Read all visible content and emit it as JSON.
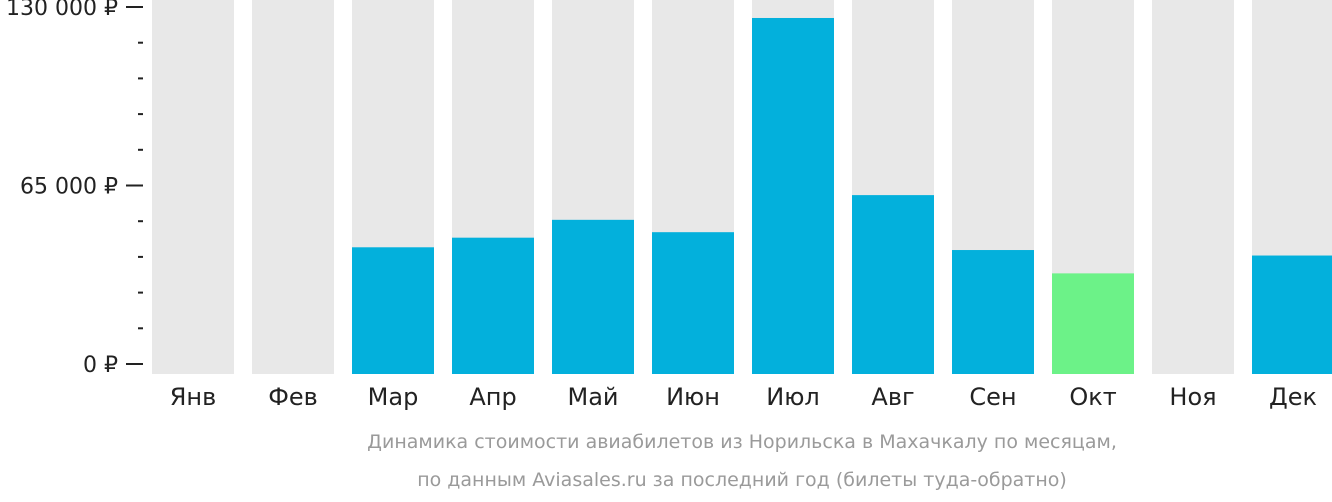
{
  "chart_data": {
    "type": "bar",
    "categories": [
      "Янв",
      "Фев",
      "Мар",
      "Апр",
      "Май",
      "Июн",
      "Июл",
      "Авг",
      "Сен",
      "Окт",
      "Ноя",
      "Дек"
    ],
    "values": [
      null,
      null,
      42500,
      46000,
      52500,
      48000,
      126000,
      61500,
      41500,
      33000,
      null,
      39500
    ],
    "highlight_index": 9,
    "ylim": [
      0,
      130000
    ],
    "y_ticks": [
      {
        "value": 0,
        "label": "0 ₽"
      },
      {
        "value": 65000,
        "label": "65 000 ₽"
      },
      {
        "value": 130000,
        "label": "130 000 ₽"
      }
    ],
    "y_minor_ticks": [
      13000,
      26000,
      39000,
      52000,
      78000,
      91000,
      104000,
      117000
    ],
    "colors": {
      "bar": "#03b0dc",
      "highlight": "#6cf288",
      "background_column": "#e8e8e8",
      "axis": "#222222"
    },
    "caption_line1": "Динамика стоимости авиабилетов из Норильска в Махачкалу по месяцам,",
    "caption_line2": "по данным Aviasales.ru за последний год (билеты туда-обратно)"
  }
}
